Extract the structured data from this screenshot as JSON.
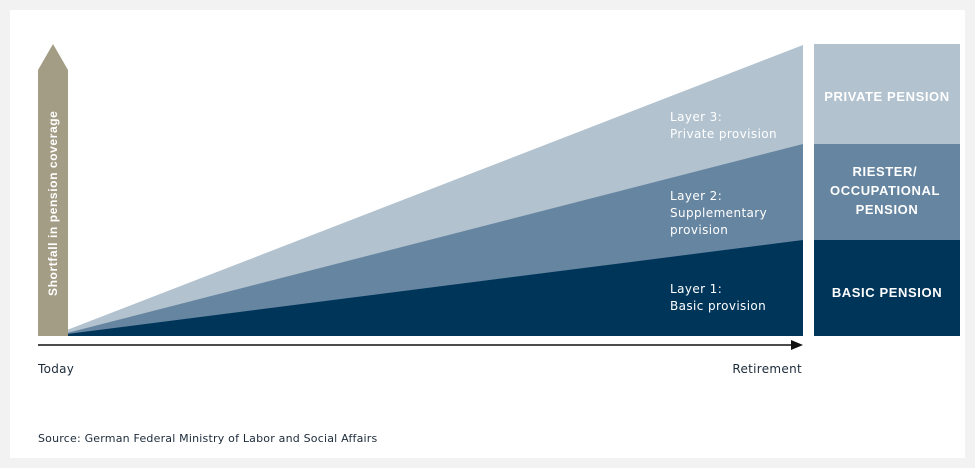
{
  "diagram": {
    "arrow_label": "Shortfall in pension coverage",
    "axis": {
      "start_label": "Today",
      "end_label": "Retirement"
    },
    "layers": [
      {
        "label_lines": [
          "Layer 3:",
          "Private provision"
        ]
      },
      {
        "label_lines": [
          "Layer 2:",
          "Supplementary",
          "provision"
        ]
      },
      {
        "label_lines": [
          "Layer 1:",
          "Basic provision"
        ]
      }
    ],
    "boxes": [
      {
        "lines": [
          "PRIVATE PENSION"
        ]
      },
      {
        "lines": [
          "RIESTER/",
          "OCCUPATIONAL",
          "PENSION"
        ]
      },
      {
        "lines": [
          "BASIC PENSION"
        ]
      }
    ],
    "source": "Source: German Federal Ministry of Labor and Social Affairs"
  },
  "colors": {
    "layer3": "#b2c2cf",
    "layer2": "#6685a0",
    "layer1": "#00355a",
    "arrow": "#a49d85",
    "axis": "#111111",
    "text_dark": "#1c2b3a",
    "text_light": "#ffffff"
  }
}
